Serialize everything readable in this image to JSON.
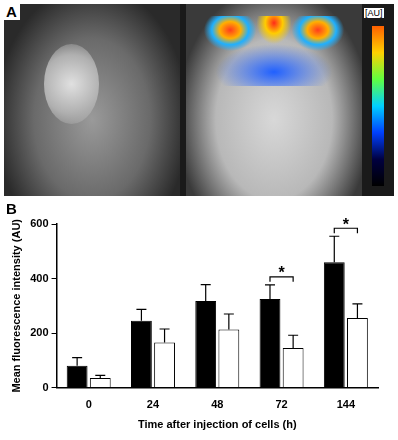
{
  "panel_a": {
    "label": "A",
    "colorbar_label": "[AU]"
  },
  "panel_b_label": "B",
  "chart_data": {
    "type": "bar",
    "x_label": "Time after injection of cells (h)",
    "y_label": "Mean fluorescence intensity (AU)",
    "categories": [
      "0",
      "24",
      "48",
      "72",
      "144"
    ],
    "series": [
      {
        "color": "#000000",
        "values": [
          80,
          245,
          318,
          325,
          460
        ],
        "errors": [
          30,
          42,
          60,
          52,
          95
        ]
      },
      {
        "color": "#ffffff",
        "values": [
          35,
          165,
          213,
          145,
          255
        ],
        "errors": [
          10,
          50,
          57,
          47,
          52
        ]
      }
    ],
    "ylim": [
      0,
      600
    ],
    "yticks": [
      0,
      200,
      400,
      600
    ],
    "grid": false,
    "annotations": [
      {
        "category": "72",
        "text": "*"
      },
      {
        "category": "144",
        "text": "*"
      }
    ]
  }
}
